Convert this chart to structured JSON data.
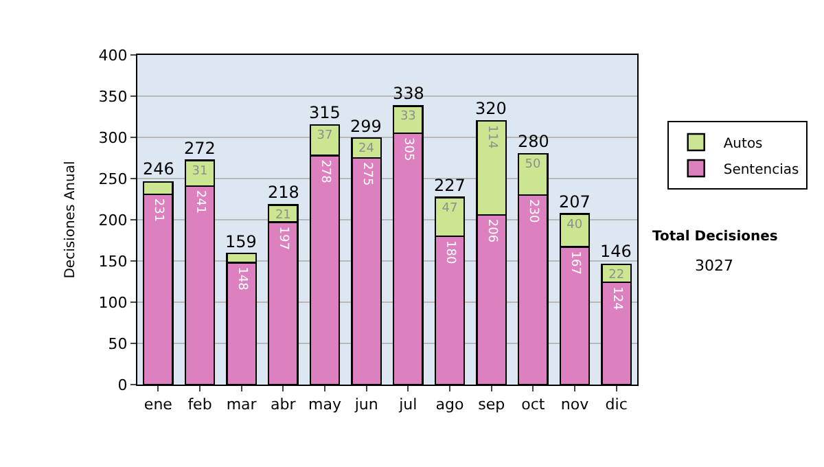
{
  "chart_data": {
    "type": "bar",
    "stacked": true,
    "ylabel": "Decisiones Anual",
    "categories": [
      "ene",
      "feb",
      "mar",
      "abr",
      "may",
      "jun",
      "jul",
      "ago",
      "sep",
      "oct",
      "nov",
      "dic"
    ],
    "series": [
      {
        "name": "Sentencias",
        "color": "#dd80c0",
        "values": [
          231,
          241,
          148,
          197,
          278,
          275,
          305,
          180,
          206,
          230,
          167,
          124
        ],
        "value_labels": [
          "231",
          "241",
          "148",
          "197",
          "278",
          "275",
          "305",
          "180",
          "206",
          "230",
          "167",
          "124"
        ]
      },
      {
        "name": "Autos",
        "color": "#cce590",
        "values": [
          15,
          31,
          11,
          21,
          37,
          24,
          33,
          47,
          114,
          50,
          40,
          22
        ],
        "value_labels": [
          null,
          "31",
          null,
          "21",
          "37",
          "24",
          "33",
          "47",
          "114",
          "50",
          "40",
          "22"
        ]
      }
    ],
    "totals": [
      "246",
      "272",
      "159",
      "218",
      "315",
      "299",
      "338",
      "227",
      "320",
      "280",
      "207",
      "146"
    ],
    "ylim": [
      0,
      400
    ],
    "yticks": [
      0,
      50,
      100,
      150,
      200,
      250,
      300,
      350,
      400
    ],
    "grid": "y",
    "legend": "right",
    "annotations": [
      "Total Decisiones",
      "3027"
    ]
  }
}
